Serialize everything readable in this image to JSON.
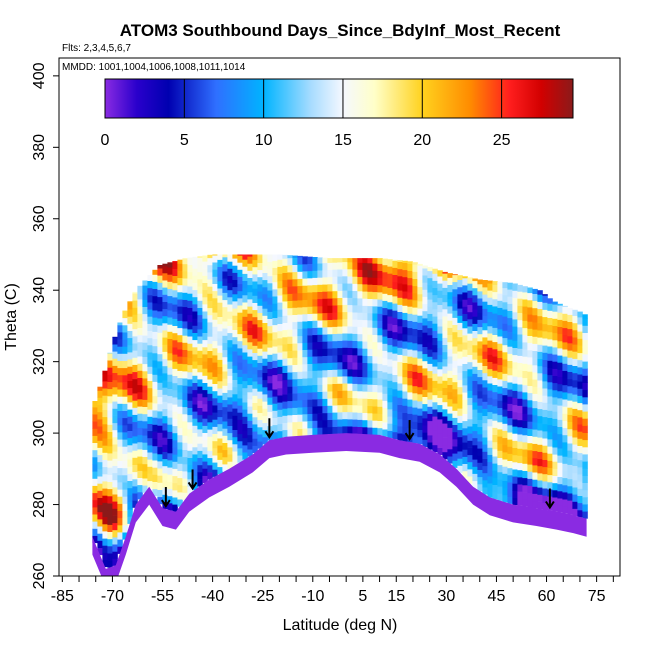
{
  "chart_data": {
    "type": "heatmap",
    "title": "ATOM3 Southbound Days_Since_BdyInf_Most_Recent",
    "subtitle_flights": "Flts: 2,3,4,5,6,7",
    "subtitle_dates": "MMDD: 1001,1004,1006,1008,1011,1014",
    "xlabel": "Latitude (deg N)",
    "ylabel": "Theta (C)",
    "xlim": [
      -86,
      82
    ],
    "ylim": [
      260,
      405
    ],
    "x_tick_labels": [
      "-85",
      "-70",
      "-55",
      "-40",
      "-25",
      "-10",
      "5",
      "15",
      "30",
      "45",
      "60",
      "75"
    ],
    "x_tick_values": [
      -85,
      -70,
      -55,
      -40,
      -25,
      -10,
      5,
      15,
      30,
      45,
      60,
      75
    ],
    "y_tick_labels": [
      "260",
      "280",
      "300",
      "320",
      "340",
      "360",
      "380",
      "400"
    ],
    "y_tick_values": [
      260,
      280,
      300,
      320,
      340,
      360,
      380,
      400
    ],
    "colorbar": {
      "min": 0,
      "max": 29.5,
      "tick_labels": [
        "0",
        "5",
        "10",
        "15",
        "20",
        "25"
      ],
      "tick_values": [
        0,
        5,
        10,
        15,
        20,
        25
      ],
      "color_stops": [
        {
          "v": 0,
          "c": "#8a2be2"
        },
        {
          "v": 2,
          "c": "#2a00cc"
        },
        {
          "v": 4,
          "c": "#0000b0"
        },
        {
          "v": 7,
          "c": "#2f6fff"
        },
        {
          "v": 10,
          "c": "#00b4ff"
        },
        {
          "v": 13,
          "c": "#a8dcff"
        },
        {
          "v": 15,
          "c": "#f5f8ff"
        },
        {
          "v": 17,
          "c": "#ffffc8"
        },
        {
          "v": 20,
          "c": "#ffd21e"
        },
        {
          "v": 23,
          "c": "#ff8c00"
        },
        {
          "v": 25.5,
          "c": "#ff1e1e"
        },
        {
          "v": 27.5,
          "c": "#d20000"
        },
        {
          "v": 29.5,
          "c": "#8b1a1a"
        }
      ]
    },
    "ground_color": "#8a2be2",
    "arrow_latitudes": [
      -54,
      -46,
      -23,
      19,
      61
    ],
    "field_extent": {
      "lat_min": -76,
      "lat_max": 72,
      "theta_top": 350,
      "theta_bottom_profile": [
        [
          -76,
          271
        ],
        [
          -72,
          262
        ],
        [
          -69,
          263
        ],
        [
          -66,
          271
        ],
        [
          -63,
          280
        ],
        [
          -59,
          285
        ],
        [
          -55,
          279
        ],
        [
          -51,
          278
        ],
        [
          -47,
          283
        ],
        [
          -41,
          287
        ],
        [
          -35,
          290
        ],
        [
          -28,
          294
        ],
        [
          -23,
          298
        ],
        [
          -18,
          299
        ],
        [
          -10,
          299.5
        ],
        [
          0,
          300
        ],
        [
          10,
          299.5
        ],
        [
          16,
          298
        ],
        [
          22,
          297
        ],
        [
          28,
          294
        ],
        [
          33,
          290
        ],
        [
          38,
          285
        ],
        [
          43,
          282
        ],
        [
          50,
          280
        ],
        [
          57,
          279
        ],
        [
          63,
          278
        ],
        [
          68,
          277
        ],
        [
          72,
          276
        ]
      ],
      "theta_top_profile": [
        [
          -76,
          307
        ],
        [
          -73,
          315
        ],
        [
          -70,
          325
        ],
        [
          -67,
          333
        ],
        [
          -63,
          340
        ],
        [
          -59,
          344
        ],
        [
          -56,
          347
        ],
        [
          -52,
          348
        ],
        [
          -48,
          349
        ],
        [
          -40,
          350
        ],
        [
          -20,
          350
        ],
        [
          -5,
          349
        ],
        [
          10,
          349
        ],
        [
          20,
          348
        ],
        [
          30,
          345
        ],
        [
          40,
          343
        ],
        [
          50,
          342
        ],
        [
          58,
          340
        ],
        [
          62,
          337
        ],
        [
          67,
          335
        ],
        [
          70,
          334
        ],
        [
          72,
          333
        ]
      ]
    }
  }
}
